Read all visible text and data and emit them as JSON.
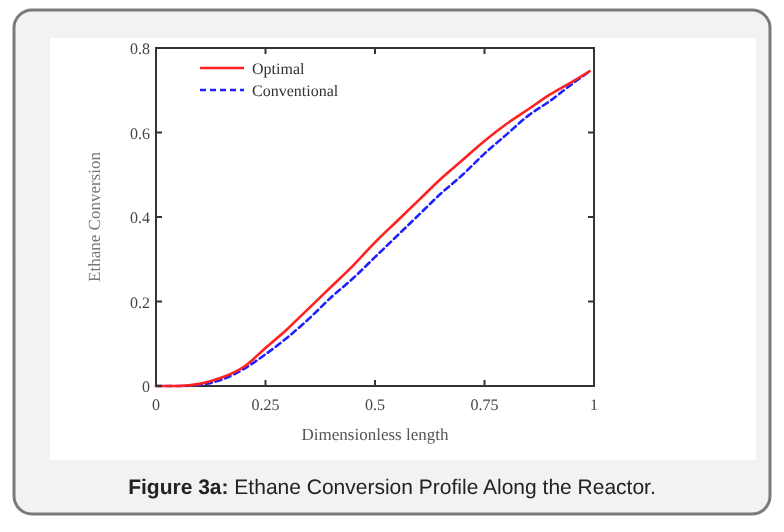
{
  "chart_data": {
    "type": "line",
    "title": "Figure 3a: Ethane Conversion Profile Along the Reactor.",
    "xlabel": "Dimensionless length",
    "ylabel": "Ethane Conversion",
    "x": [
      0,
      0.05,
      0.1,
      0.15,
      0.2,
      0.25,
      0.3,
      0.35,
      0.4,
      0.45,
      0.5,
      0.55,
      0.6,
      0.65,
      0.7,
      0.75,
      0.8,
      0.85,
      0.9,
      0.95,
      0.99
    ],
    "series": [
      {
        "name": "Optimal",
        "color": "#ff2020",
        "line_style": "solid",
        "values": [
          0,
          0,
          0.005,
          0.02,
          0.045,
          0.09,
          0.135,
          0.185,
          0.235,
          0.285,
          0.34,
          0.39,
          0.44,
          0.49,
          0.535,
          0.58,
          0.62,
          0.655,
          0.69,
          0.72,
          0.745
        ]
      },
      {
        "name": "Conventional",
        "color": "#2020ff",
        "line_style": "dashed",
        "values": [
          0,
          0,
          0.003,
          0.015,
          0.04,
          0.075,
          0.115,
          0.16,
          0.21,
          0.255,
          0.305,
          0.355,
          0.405,
          0.455,
          0.5,
          0.55,
          0.595,
          0.64,
          0.675,
          0.715,
          0.745
        ]
      }
    ],
    "xlim": [
      0,
      1
    ],
    "ylim": [
      0,
      0.8
    ],
    "xticks": [
      0,
      0.25,
      0.5,
      0.75,
      1
    ],
    "yticks": [
      0,
      0.2,
      0.4,
      0.6,
      0.8
    ],
    "legend": "top left",
    "grid": false
  }
}
